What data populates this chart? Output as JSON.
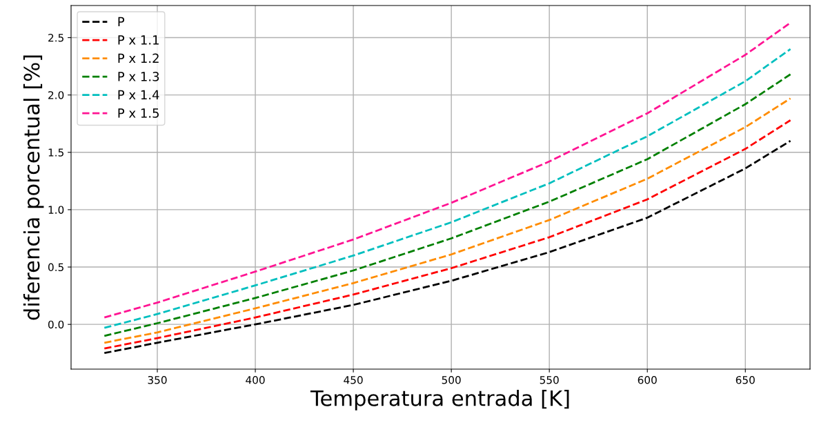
{
  "chart_data": {
    "type": "line",
    "xlabel": "Temperatura entrada [K]",
    "ylabel": "diferencia porcentual [%]",
    "x": [
      323,
      350,
      400,
      450,
      500,
      550,
      600,
      650,
      673
    ],
    "series": [
      {
        "name": "P",
        "color": "#000000",
        "values": [
          -0.25,
          -0.16,
          0.0,
          0.17,
          0.38,
          0.63,
          0.93,
          1.36,
          1.6
        ]
      },
      {
        "name": "P x 1.1",
        "color": "#ff0000",
        "values": [
          -0.21,
          -0.12,
          0.06,
          0.26,
          0.49,
          0.76,
          1.09,
          1.53,
          1.78
        ]
      },
      {
        "name": "P x 1.2",
        "color": "#ff8c00",
        "values": [
          -0.16,
          -0.07,
          0.14,
          0.36,
          0.61,
          0.91,
          1.27,
          1.72,
          1.97
        ]
      },
      {
        "name": "P x 1.3",
        "color": "#008000",
        "values": [
          -0.1,
          0.01,
          0.23,
          0.47,
          0.75,
          1.07,
          1.44,
          1.92,
          2.18
        ]
      },
      {
        "name": "P x 1.4",
        "color": "#00bfbf",
        "values": [
          -0.03,
          0.09,
          0.34,
          0.6,
          0.89,
          1.23,
          1.64,
          2.12,
          2.4
        ]
      },
      {
        "name": "P x 1.5",
        "color": "#ff1493",
        "values": [
          0.06,
          0.19,
          0.46,
          0.74,
          1.06,
          1.42,
          1.84,
          2.35,
          2.63
        ]
      }
    ],
    "xlim": [
      306,
      683
    ],
    "ylim": [
      -0.39,
      2.78
    ],
    "xticks": [
      350,
      400,
      450,
      500,
      550,
      600,
      650
    ],
    "yticks": [
      {
        "value": 0,
        "label": "0.0"
      },
      0.5,
      {
        "value": 1,
        "label": "1.0"
      },
      1.5,
      {
        "value": 2,
        "label": "2.0"
      },
      2.5
    ],
    "grid": true,
    "legend": "top left",
    "line_style": "dashed",
    "marker": "none"
  }
}
